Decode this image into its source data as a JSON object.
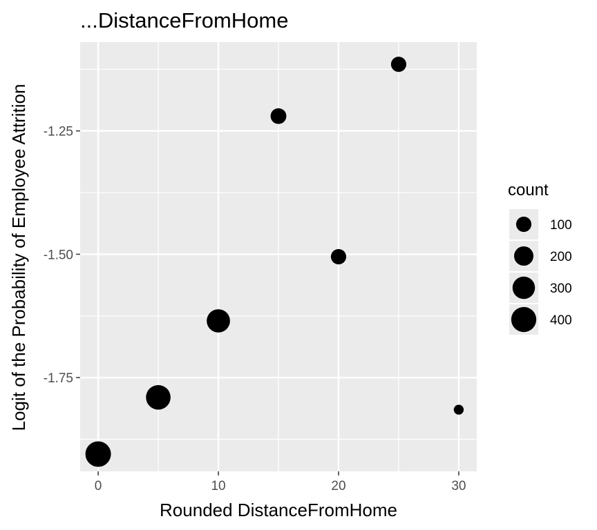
{
  "chart_data": {
    "type": "scatter",
    "title": "...DistanceFromHome",
    "xlabel": "Rounded DistanceFromHome",
    "ylabel": "Logit of the Probability of Employee Attrition",
    "xlim": [
      -1.5,
      31.5
    ],
    "ylim": [
      -1.94,
      -1.07
    ],
    "x_ticks": [
      0,
      10,
      20,
      30
    ],
    "x_tick_labels": [
      "0",
      "10",
      "20",
      "30"
    ],
    "y_ticks": [
      -1.25,
      -1.5,
      -1.75
    ],
    "y_tick_labels": [
      "-1.25",
      "-1.50",
      "-1.75"
    ],
    "grid": true,
    "legend": {
      "title": "count",
      "placement": "right",
      "entries": [
        {
          "label": "100",
          "value": 100
        },
        {
          "label": "200",
          "value": 200
        },
        {
          "label": "300",
          "value": 300
        },
        {
          "label": "400",
          "value": 400
        }
      ]
    },
    "points": [
      {
        "x": 0,
        "y": -1.905,
        "count": 420
      },
      {
        "x": 5,
        "y": -1.79,
        "count": 380
      },
      {
        "x": 10,
        "y": -1.635,
        "count": 330
      },
      {
        "x": 15,
        "y": -1.22,
        "count": 110
      },
      {
        "x": 20,
        "y": -1.505,
        "count": 100
      },
      {
        "x": 25,
        "y": -1.115,
        "count": 100
      },
      {
        "x": 30,
        "y": -1.815,
        "count": 20
      }
    ],
    "colors": {
      "panel": "#ebebeb",
      "grid": "#ffffff",
      "point": "#000000"
    }
  }
}
